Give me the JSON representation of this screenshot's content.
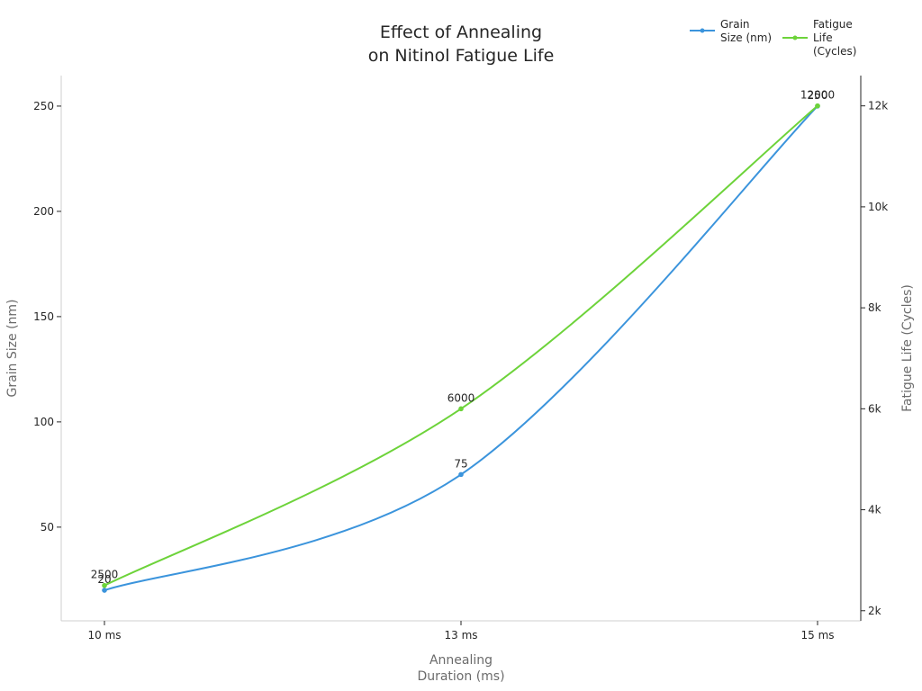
{
  "chart_data": {
    "type": "line",
    "title_lines": [
      "Effect of Annealing",
      "on Nitinol Fatigue Life"
    ],
    "xlabel_lines": [
      "Annealing",
      "Duration (ms)"
    ],
    "y_left_label": "Grain Size (nm)",
    "y_right_label": "Fatigue Life (Cycles)",
    "categories": [
      "10 ms",
      "13 ms",
      "15 ms"
    ],
    "x": [
      10,
      13,
      15
    ],
    "y_left_ticks": [
      "50",
      "100",
      "150",
      "200",
      "250"
    ],
    "y_left_tick_values": [
      50,
      100,
      150,
      200,
      250
    ],
    "y_right_ticks": [
      "2k",
      "4k",
      "6k",
      "8k",
      "10k",
      "12k"
    ],
    "y_right_tick_values": [
      2000,
      4000,
      6000,
      8000,
      10000,
      12000
    ],
    "y_left_range": [
      5.5,
      264.5
    ],
    "y_right_range": [
      1800,
      12600
    ],
    "grid": false,
    "legend_position": "top-right",
    "series": [
      {
        "name_lines": [
          "Grain",
          "Size (nm)"
        ],
        "axis": "left",
        "color": "#3b94dc",
        "values": [
          20,
          75,
          250
        ],
        "labels": [
          "20",
          "75",
          "250"
        ]
      },
      {
        "name_lines": [
          "Fatigue",
          "Life",
          "(Cycles)"
        ],
        "axis": "right",
        "color": "#6dd33a",
        "values": [
          2500,
          6000,
          12000
        ],
        "labels": [
          "2500",
          "6000",
          "12000"
        ]
      }
    ]
  }
}
